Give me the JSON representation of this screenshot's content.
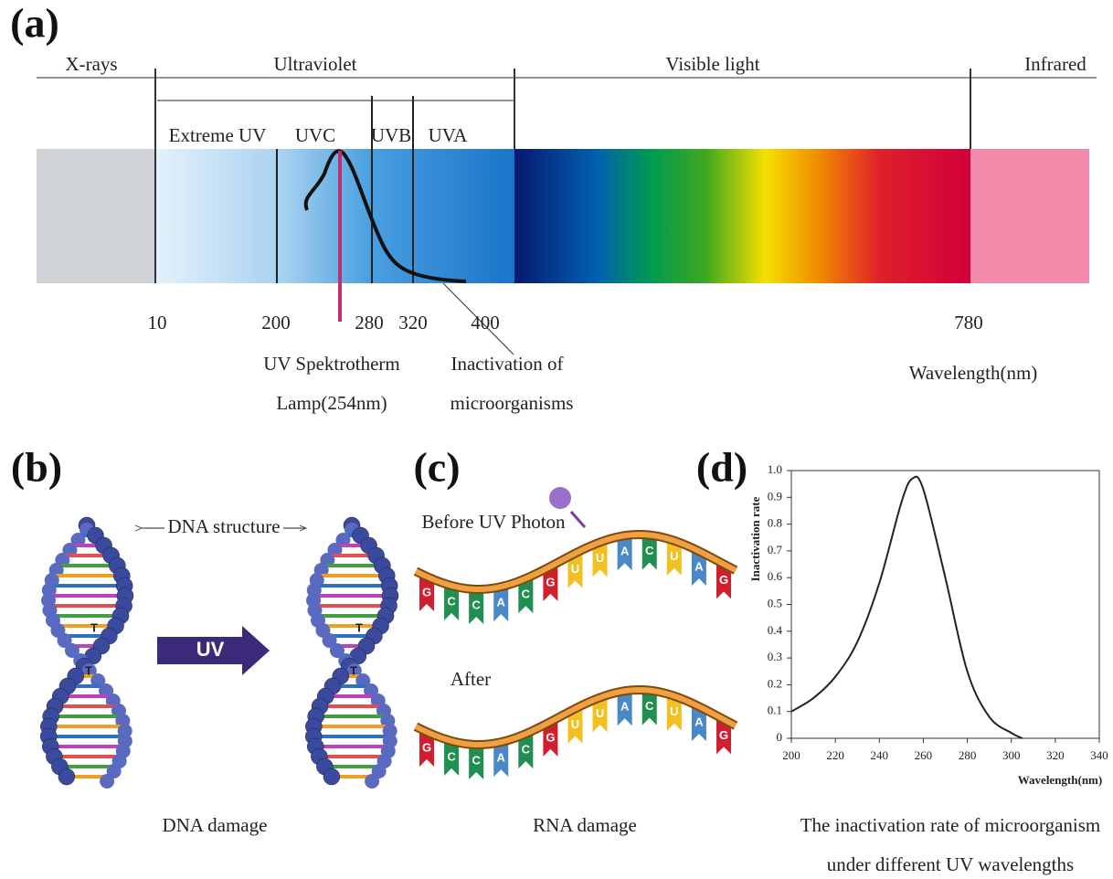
{
  "panels": {
    "a": {
      "label": "(a)",
      "regions": [
        "X-rays",
        "Ultraviolet",
        "Visible light",
        "Infrared"
      ],
      "uv_bands": [
        "Extreme UV",
        "UVC",
        "UVB",
        "UVA"
      ],
      "wavelengths": [
        10,
        200,
        280,
        320,
        400,
        780
      ],
      "lamp_note": [
        "UV Spektrotherm",
        "Lamp(254nm)"
      ],
      "curve_note": [
        "Inactivation of",
        "microorganisms"
      ],
      "axis_label": "Wavelength(nm)"
    },
    "b": {
      "label": "(b)",
      "structure": "DNA structure",
      "arrow": "UV",
      "bases_before": [
        "T",
        "T"
      ],
      "bases_after": [
        "T",
        "T"
      ],
      "caption": "DNA damage"
    },
    "c": {
      "label": "(c)",
      "before": "Before UV Photon",
      "after": "After",
      "top_bases": [
        "G",
        "C",
        "C",
        "A",
        "C",
        "G",
        "U",
        "U",
        "A",
        "C",
        "U",
        "A",
        "G"
      ],
      "bottom_bases": [
        "G",
        "C",
        "C",
        "A",
        "C",
        "G",
        "U",
        "U",
        "A",
        "C",
        "U",
        "A",
        "G"
      ],
      "caption": "RNA damage"
    },
    "d": {
      "label": "(d)",
      "caption": [
        "The inactivation rate of microorganism",
        "under different UV wavelengths"
      ]
    }
  },
  "chart_data": {
    "type": "line",
    "y_label": "Inactivation  rate",
    "x_label": "Wavelength(nm)",
    "color": "#222222",
    "x": [
      200,
      210,
      220,
      230,
      240,
      250,
      255,
      260,
      270,
      280,
      290,
      300,
      305
    ],
    "values": [
      0.1,
      0.15,
      0.23,
      0.36,
      0.58,
      0.88,
      0.97,
      0.93,
      0.6,
      0.25,
      0.08,
      0.02,
      0
    ],
    "xlim": [
      200,
      340
    ],
    "ylim": [
      0,
      1
    ],
    "xticks": [
      200,
      220,
      240,
      260,
      280,
      300,
      320,
      340
    ],
    "yticks": [
      0,
      0.1,
      0.2,
      0.3,
      0.4,
      0.5,
      0.6,
      0.7,
      0.8,
      0.9,
      {
        "value": 1,
        "label": "1.0"
      }
    ]
  }
}
